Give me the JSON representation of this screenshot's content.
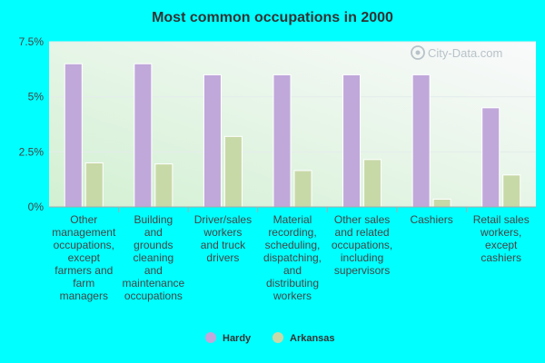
{
  "chart_data": {
    "type": "bar",
    "title": "Most common occupations in 2000",
    "xlabel": "",
    "ylabel": "",
    "ylim": [
      0,
      7.5
    ],
    "yticks": [
      0,
      2.5,
      5,
      7.5
    ],
    "ytick_labels": [
      "0%",
      "2.5%",
      "5%",
      "7.5%"
    ],
    "grid": true,
    "legend_position": "bottom-center",
    "categories": [
      [
        "Other",
        "management",
        "occupations,",
        "except",
        "farmers and",
        "farm",
        "managers"
      ],
      [
        "Building",
        "and",
        "grounds",
        "cleaning",
        "and",
        "maintenance",
        "occupations"
      ],
      [
        "Driver/sales",
        "workers",
        "and truck",
        "drivers"
      ],
      [
        "Material",
        "recording,",
        "scheduling,",
        "dispatching,",
        "and",
        "distributing",
        "workers"
      ],
      [
        "Other sales",
        "and related",
        "occupations,",
        "including",
        "supervisors"
      ],
      [
        "Cashiers"
      ],
      [
        "Retail sales",
        "workers,",
        "except",
        "cashiers"
      ]
    ],
    "series": [
      {
        "name": "Hardy",
        "color": "#c0a8da",
        "values": [
          6.5,
          6.5,
          6.0,
          6.0,
          6.0,
          6.0,
          4.5
        ]
      },
      {
        "name": "Arkansas",
        "color": "#c8d9a8",
        "values": [
          2.0,
          1.95,
          3.2,
          1.65,
          2.15,
          0.35,
          1.45
        ]
      }
    ]
  },
  "watermark": {
    "text": "City-Data.com"
  },
  "colors": {
    "page_background": "#00ffff",
    "plot_gradient_start": "#d2f0d2",
    "plot_gradient_end": "#fafafc",
    "grid_line": "#e4ecec",
    "axis_line": "#aaaaaa"
  }
}
